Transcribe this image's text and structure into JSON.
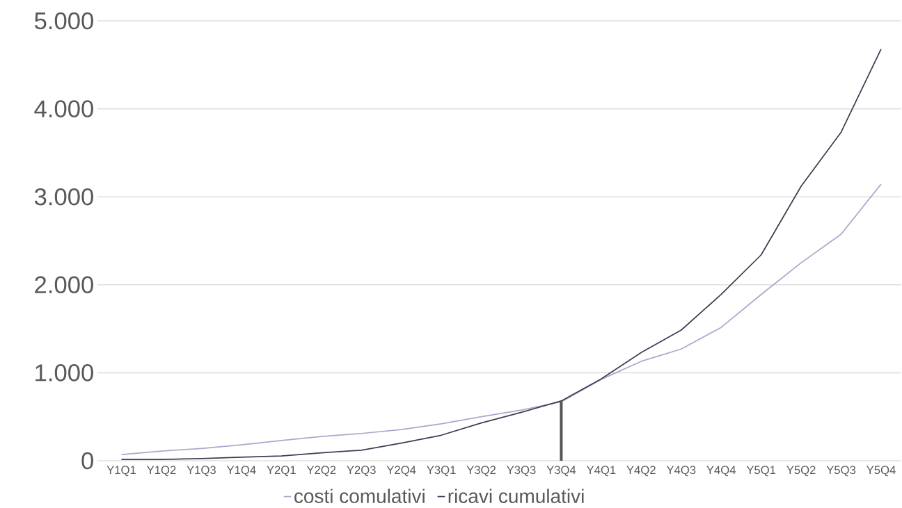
{
  "chart_data": {
    "type": "line",
    "categories": [
      "Y1Q1",
      "Y1Q2",
      "Y1Q3",
      "Y1Q4",
      "Y2Q1",
      "Y2Q2",
      "Y2Q3",
      "Y2Q4",
      "Y3Q1",
      "Y3Q2",
      "Y3Q3",
      "Y3Q4",
      "Y4Q1",
      "Y4Q2",
      "Y4Q3",
      "Y4Q4",
      "Y5Q1",
      "Y5Q2",
      "Y5Q3",
      "Y5Q4"
    ],
    "series": [
      {
        "name": "costi comulativi",
        "color": "#a9a8cc",
        "values": [
          70,
          110,
          140,
          180,
          230,
          275,
          310,
          355,
          420,
          500,
          575,
          670,
          925,
          1130,
          1270,
          1515,
          1890,
          2250,
          2575,
          3145
        ]
      },
      {
        "name": "ricavi cumulativi",
        "color": "#3d3d55",
        "values": [
          15,
          15,
          25,
          40,
          55,
          90,
          120,
          200,
          290,
          430,
          550,
          680,
          930,
          1230,
          1485,
          1890,
          2340,
          3120,
          3735,
          4680
        ]
      }
    ],
    "ylim": [
      0,
      5000
    ],
    "yticks": [
      {
        "value": 0,
        "label": "0"
      },
      {
        "value": 1000,
        "label": "1.000"
      },
      {
        "value": 2000,
        "label": "2.000"
      },
      {
        "value": 3000,
        "label": "3.000"
      },
      {
        "value": 4000,
        "label": "4.000"
      },
      {
        "value": 5000,
        "label": "5.000"
      }
    ],
    "ref_lines": [
      {
        "axis": "x",
        "value": "Y3Q4",
        "color": "#555555"
      }
    ],
    "grid": "y",
    "legend": "bottom",
    "marker": "none",
    "line_style": "solid"
  }
}
